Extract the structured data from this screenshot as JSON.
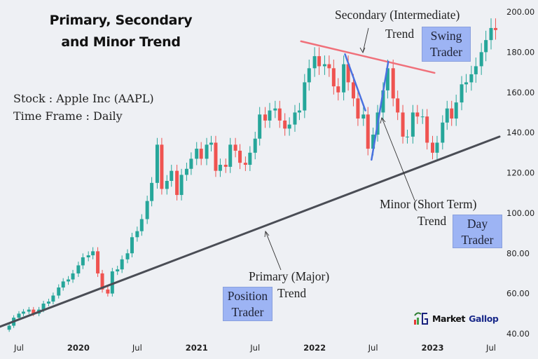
{
  "title": {
    "line1": "Primary, Secondary",
    "line2": "and Minor Trend"
  },
  "info": {
    "stock": "Stock : Apple Inc (AAPL)",
    "timeframe": "Time Frame : Daily"
  },
  "annotations": {
    "secondary": {
      "label": "Secondary (Intermediate)",
      "trend": "Trend",
      "trader_line1": "Swing",
      "trader_line2": "Trader"
    },
    "minor": {
      "label": "Minor (Short Term)",
      "trend": "Trend",
      "trader_line1": "Day",
      "trader_line2": "Trader"
    },
    "primary": {
      "label": "Primary (Major)",
      "trend": "Trend",
      "trader_line1": "Position",
      "trader_line2": "Trader"
    }
  },
  "logo": {
    "text1": "Market",
    "text2": "Gallop"
  },
  "colors": {
    "up": "#26a69a",
    "down": "#ef5350",
    "primary_line": "#4a4d55",
    "secondary_line": "#f0707a",
    "minor_line": "#4a72e0",
    "trader_box": "#9db4f4",
    "background": "#eef0f4"
  },
  "chart_data": {
    "type": "candlestick",
    "title": "Primary, Secondary and Minor Trend",
    "ylim": [
      40,
      200
    ],
    "yticks": [
      "40.00",
      "60.00",
      "80.00",
      "100.00",
      "120.00",
      "140.00",
      "160.00",
      "180.00",
      "200.00"
    ],
    "ytick_values": [
      40,
      60,
      80,
      100,
      120,
      140,
      160,
      180,
      200
    ],
    "xticks": [
      {
        "label": "Jul",
        "date": "2019-07-01",
        "year": false
      },
      {
        "label": "2020",
        "date": "2020-01-01",
        "year": true
      },
      {
        "label": "Jul",
        "date": "2020-07-01",
        "year": false
      },
      {
        "label": "2021",
        "date": "2021-01-01",
        "year": true
      },
      {
        "label": "Jul",
        "date": "2021-07-01",
        "year": false
      },
      {
        "label": "2022",
        "date": "2022-01-01",
        "year": true
      },
      {
        "label": "Jul",
        "date": "2022-07-01",
        "year": false
      },
      {
        "label": "2023",
        "date": "2023-01-01",
        "year": true
      },
      {
        "label": "Jul",
        "date": "2023-07-01",
        "year": false
      }
    ],
    "grid": false,
    "dates": [
      "2019-06-01",
      "2019-06-15",
      "2019-07-01",
      "2019-07-15",
      "2019-08-01",
      "2019-08-15",
      "2019-09-01",
      "2019-09-15",
      "2019-10-01",
      "2019-10-15",
      "2019-11-01",
      "2019-11-15",
      "2019-12-01",
      "2019-12-15",
      "2020-01-01",
      "2020-01-15",
      "2020-02-01",
      "2020-02-15",
      "2020-03-01",
      "2020-03-15",
      "2020-04-01",
      "2020-04-15",
      "2020-05-01",
      "2020-05-15",
      "2020-06-01",
      "2020-06-15",
      "2020-07-01",
      "2020-07-15",
      "2020-08-01",
      "2020-08-15",
      "2020-09-01",
      "2020-09-15",
      "2020-10-01",
      "2020-10-15",
      "2020-11-01",
      "2020-11-15",
      "2020-12-01",
      "2020-12-15",
      "2021-01-01",
      "2021-01-15",
      "2021-02-01",
      "2021-02-15",
      "2021-03-01",
      "2021-03-15",
      "2021-04-01",
      "2021-04-15",
      "2021-05-01",
      "2021-05-15",
      "2021-06-01",
      "2021-06-15",
      "2021-07-01",
      "2021-07-15",
      "2021-08-01",
      "2021-08-15",
      "2021-09-01",
      "2021-09-15",
      "2021-10-01",
      "2021-10-15",
      "2021-11-01",
      "2021-11-15",
      "2021-12-01",
      "2021-12-15",
      "2022-01-01",
      "2022-01-15",
      "2022-02-01",
      "2022-02-15",
      "2022-03-01",
      "2022-03-15",
      "2022-04-01",
      "2022-04-15",
      "2022-05-01",
      "2022-05-15",
      "2022-06-01",
      "2022-06-15",
      "2022-07-01",
      "2022-07-15",
      "2022-08-01",
      "2022-08-15",
      "2022-09-01",
      "2022-09-15",
      "2022-10-01",
      "2022-10-15",
      "2022-11-01",
      "2022-11-15",
      "2022-12-01",
      "2022-12-15",
      "2023-01-01",
      "2023-01-15",
      "2023-02-01",
      "2023-02-15",
      "2023-03-01",
      "2023-03-15",
      "2023-04-01",
      "2023-04-15",
      "2023-05-01",
      "2023-05-15",
      "2023-06-01",
      "2023-06-15",
      "2023-07-01",
      "2023-07-15"
    ],
    "close": [
      44,
      48,
      50,
      51,
      52,
      50,
      52,
      55,
      56,
      59,
      63,
      66,
      67,
      70,
      74,
      78,
      79,
      81,
      70,
      62,
      60,
      71,
      72,
      77,
      80,
      88,
      91,
      97,
      106,
      115,
      134,
      112,
      116,
      121,
      109,
      119,
      122,
      127,
      132,
      127,
      134,
      135,
      121,
      124,
      123,
      134,
      131,
      125,
      124,
      130,
      137,
      149,
      146,
      151,
      152,
      146,
      142,
      144,
      150,
      151,
      165,
      172,
      178,
      173,
      174,
      172,
      163,
      160,
      174,
      165,
      157,
      147,
      149,
      132,
      139,
      150,
      161,
      172,
      157,
      150,
      138,
      138,
      150,
      148,
      148,
      135,
      130,
      135,
      145,
      152,
      147,
      155,
      164,
      165,
      169,
      173,
      180,
      186,
      192,
      191
    ],
    "trendlines": [
      {
        "name": "Primary",
        "from": {
          "date": "2019-05-03",
          "price": 43.5
        },
        "to": {
          "date": "2023-07-27",
          "price": 138
        }
      },
      {
        "name": "Secondary",
        "from": {
          "date": "2021-11-20",
          "price": 185.4
        },
        "to": {
          "date": "2023-01-07",
          "price": 169.7
        }
      },
      {
        "name": "Minor down",
        "from": {
          "date": "2022-04-05",
          "price": 179
        },
        "to": {
          "date": "2022-06-07",
          "price": 151
        }
      },
      {
        "name": "Minor up",
        "from": {
          "date": "2022-06-26",
          "price": 126.5
        },
        "to": {
          "date": "2022-08-17",
          "price": 175.3
        }
      }
    ]
  }
}
